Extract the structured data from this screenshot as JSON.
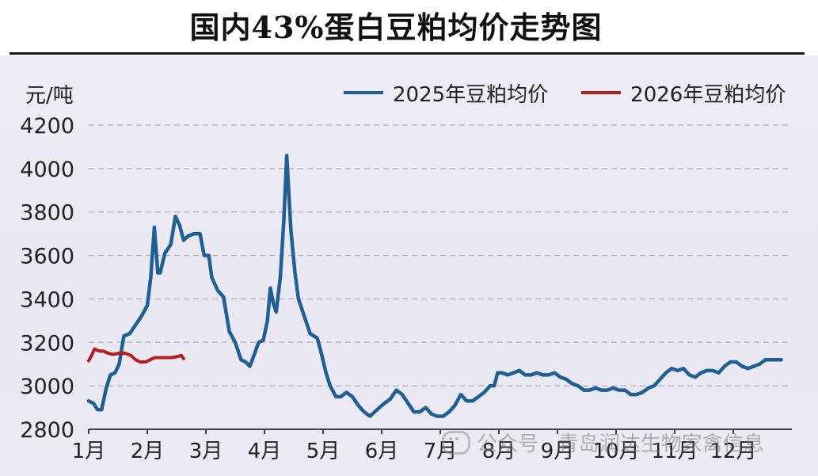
{
  "title": "国内43%蛋白豆粕均价走势图",
  "watermark": "公众号 · 青岛润达生物家禽信息",
  "colors": {
    "series_2025": "#1f5f93",
    "series_2026": "#b31d1d",
    "grid": "#b9b6c6"
  },
  "chart_data": {
    "type": "line",
    "ylabel": "元/吨",
    "ylim": [
      2800,
      4200
    ],
    "yticks": [
      2800,
      3000,
      3200,
      3400,
      3600,
      3800,
      4000,
      4200
    ],
    "xlim": [
      0,
      12
    ],
    "xticks": [
      {
        "x": 0,
        "label": "1月"
      },
      {
        "x": 1,
        "label": "2月"
      },
      {
        "x": 2,
        "label": "3月"
      },
      {
        "x": 3,
        "label": "4月"
      },
      {
        "x": 4,
        "label": "5月"
      },
      {
        "x": 5,
        "label": "6月"
      },
      {
        "x": 6,
        "label": "7月"
      },
      {
        "x": 7,
        "label": "8月"
      },
      {
        "x": 8,
        "label": "9月"
      },
      {
        "x": 9,
        "label": "10月"
      },
      {
        "x": 10,
        "label": "11月"
      },
      {
        "x": 11,
        "label": "12月"
      }
    ],
    "grid": true,
    "legend_position": "top-right",
    "series": [
      {
        "name": "2025年豆粕均价",
        "color": "#1f5f93",
        "points": [
          [
            0.0,
            2930
          ],
          [
            0.08,
            2920
          ],
          [
            0.15,
            2890
          ],
          [
            0.22,
            2890
          ],
          [
            0.3,
            2990
          ],
          [
            0.37,
            3050
          ],
          [
            0.45,
            3060
          ],
          [
            0.52,
            3100
          ],
          [
            0.6,
            3230
          ],
          [
            0.7,
            3240
          ],
          [
            0.8,
            3280
          ],
          [
            0.9,
            3320
          ],
          [
            1.0,
            3370
          ],
          [
            1.06,
            3500
          ],
          [
            1.12,
            3730
          ],
          [
            1.18,
            3520
          ],
          [
            1.22,
            3520
          ],
          [
            1.3,
            3610
          ],
          [
            1.4,
            3650
          ],
          [
            1.48,
            3780
          ],
          [
            1.55,
            3740
          ],
          [
            1.62,
            3670
          ],
          [
            1.7,
            3690
          ],
          [
            1.8,
            3700
          ],
          [
            1.9,
            3700
          ],
          [
            1.97,
            3600
          ],
          [
            2.05,
            3600
          ],
          [
            2.1,
            3500
          ],
          [
            2.2,
            3440
          ],
          [
            2.3,
            3410
          ],
          [
            2.4,
            3250
          ],
          [
            2.5,
            3200
          ],
          [
            2.6,
            3120
          ],
          [
            2.68,
            3110
          ],
          [
            2.75,
            3090
          ],
          [
            2.82,
            3140
          ],
          [
            2.9,
            3200
          ],
          [
            2.98,
            3210
          ],
          [
            3.05,
            3300
          ],
          [
            3.1,
            3450
          ],
          [
            3.15,
            3380
          ],
          [
            3.2,
            3340
          ],
          [
            3.27,
            3500
          ],
          [
            3.33,
            3760
          ],
          [
            3.38,
            4060
          ],
          [
            3.45,
            3720
          ],
          [
            3.52,
            3520
          ],
          [
            3.58,
            3400
          ],
          [
            3.68,
            3320
          ],
          [
            3.78,
            3240
          ],
          [
            3.9,
            3220
          ],
          [
            3.97,
            3150
          ],
          [
            4.05,
            3060
          ],
          [
            4.12,
            3000
          ],
          [
            4.22,
            2950
          ],
          [
            4.3,
            2950
          ],
          [
            4.4,
            2970
          ],
          [
            4.5,
            2950
          ],
          [
            4.6,
            2910
          ],
          [
            4.7,
            2880
          ],
          [
            4.8,
            2860
          ],
          [
            4.88,
            2880
          ],
          [
            4.96,
            2900
          ],
          [
            5.05,
            2920
          ],
          [
            5.15,
            2940
          ],
          [
            5.25,
            2980
          ],
          [
            5.35,
            2960
          ],
          [
            5.45,
            2920
          ],
          [
            5.55,
            2880
          ],
          [
            5.65,
            2880
          ],
          [
            5.75,
            2900
          ],
          [
            5.85,
            2870
          ],
          [
            5.95,
            2860
          ],
          [
            6.05,
            2860
          ],
          [
            6.15,
            2880
          ],
          [
            6.25,
            2910
          ],
          [
            6.35,
            2960
          ],
          [
            6.45,
            2930
          ],
          [
            6.55,
            2930
          ],
          [
            6.65,
            2950
          ],
          [
            6.75,
            2970
          ],
          [
            6.85,
            3000
          ],
          [
            6.92,
            3000
          ],
          [
            6.98,
            3060
          ],
          [
            7.05,
            3060
          ],
          [
            7.15,
            3050
          ],
          [
            7.25,
            3060
          ],
          [
            7.35,
            3070
          ],
          [
            7.45,
            3050
          ],
          [
            7.55,
            3050
          ],
          [
            7.65,
            3060
          ],
          [
            7.75,
            3050
          ],
          [
            7.85,
            3050
          ],
          [
            7.95,
            3060
          ],
          [
            8.05,
            3040
          ],
          [
            8.15,
            3030
          ],
          [
            8.25,
            3010
          ],
          [
            8.35,
            3000
          ],
          [
            8.45,
            2980
          ],
          [
            8.55,
            2980
          ],
          [
            8.65,
            2990
          ],
          [
            8.75,
            2980
          ],
          [
            8.85,
            2980
          ],
          [
            8.95,
            2990
          ],
          [
            9.05,
            2980
          ],
          [
            9.15,
            2980
          ],
          [
            9.25,
            2960
          ],
          [
            9.35,
            2960
          ],
          [
            9.45,
            2970
          ],
          [
            9.55,
            2990
          ],
          [
            9.65,
            3000
          ],
          [
            9.75,
            3030
          ],
          [
            9.85,
            3060
          ],
          [
            9.95,
            3080
          ],
          [
            10.05,
            3070
          ],
          [
            10.15,
            3080
          ],
          [
            10.25,
            3050
          ],
          [
            10.35,
            3040
          ],
          [
            10.45,
            3060
          ],
          [
            10.55,
            3070
          ],
          [
            10.65,
            3070
          ],
          [
            10.75,
            3060
          ],
          [
            10.85,
            3090
          ],
          [
            10.95,
            3110
          ],
          [
            11.05,
            3110
          ],
          [
            11.15,
            3090
          ],
          [
            11.25,
            3080
          ],
          [
            11.35,
            3090
          ],
          [
            11.45,
            3100
          ],
          [
            11.55,
            3120
          ],
          [
            11.65,
            3120
          ],
          [
            11.75,
            3120
          ],
          [
            11.82,
            3120
          ]
        ]
      },
      {
        "name": "2026年豆粕均价",
        "color": "#b31d1d",
        "points": [
          [
            0.0,
            3115
          ],
          [
            0.05,
            3140
          ],
          [
            0.1,
            3170
          ],
          [
            0.18,
            3160
          ],
          [
            0.25,
            3160
          ],
          [
            0.33,
            3150
          ],
          [
            0.42,
            3145
          ],
          [
            0.52,
            3150
          ],
          [
            0.62,
            3150
          ],
          [
            0.72,
            3140
          ],
          [
            0.8,
            3120
          ],
          [
            0.88,
            3110
          ],
          [
            0.97,
            3110
          ],
          [
            1.05,
            3120
          ],
          [
            1.13,
            3130
          ],
          [
            1.22,
            3130
          ],
          [
            1.32,
            3130
          ],
          [
            1.42,
            3130
          ],
          [
            1.52,
            3135
          ],
          [
            1.58,
            3140
          ],
          [
            1.62,
            3125
          ]
        ]
      }
    ]
  }
}
